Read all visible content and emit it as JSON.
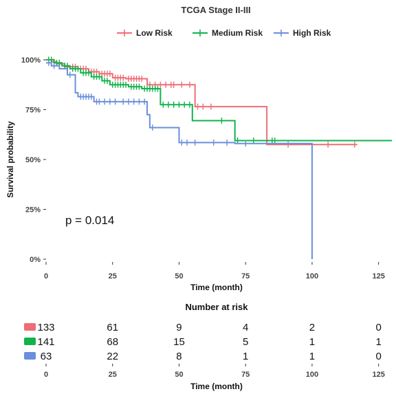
{
  "chart_data": {
    "type": "line",
    "subtype": "kaplan-meier",
    "title": "TCGA Stage II-III",
    "xlabel": "Time (month)",
    "ylabel": "Survival probability",
    "xlim": [
      0,
      130
    ],
    "ylim": [
      0,
      1
    ],
    "xticks": [
      0,
      25,
      50,
      75,
      100,
      125
    ],
    "yticks": [
      0,
      0.25,
      0.5,
      0.75,
      1.0
    ],
    "ytick_labels": [
      "0%",
      "25%",
      "50%",
      "75%",
      "100%"
    ],
    "pvalue_label": "p = 0.014",
    "grid": false,
    "legend_position": "top",
    "series": [
      {
        "name": "Low Risk",
        "color": "#ee6d76",
        "steps": [
          [
            0,
            1.0
          ],
          [
            2,
            0.99
          ],
          [
            4,
            0.98
          ],
          [
            7,
            0.965
          ],
          [
            12,
            0.955
          ],
          [
            16,
            0.94
          ],
          [
            20,
            0.93
          ],
          [
            25,
            0.91
          ],
          [
            30,
            0.905
          ],
          [
            38,
            0.875
          ],
          [
            56,
            0.765
          ],
          [
            83,
            0.575
          ]
        ],
        "end": 117,
        "censors": [
          [
            1,
            1.0
          ],
          [
            3,
            0.99
          ],
          [
            5,
            0.98
          ],
          [
            8,
            0.965
          ],
          [
            10,
            0.965
          ],
          [
            11,
            0.965
          ],
          [
            13,
            0.955
          ],
          [
            14,
            0.955
          ],
          [
            15,
            0.955
          ],
          [
            17,
            0.94
          ],
          [
            18,
            0.94
          ],
          [
            19,
            0.94
          ],
          [
            21,
            0.93
          ],
          [
            22,
            0.93
          ],
          [
            23,
            0.93
          ],
          [
            24,
            0.93
          ],
          [
            26,
            0.91
          ],
          [
            27,
            0.91
          ],
          [
            28,
            0.91
          ],
          [
            29,
            0.91
          ],
          [
            31,
            0.905
          ],
          [
            32,
            0.905
          ],
          [
            33,
            0.905
          ],
          [
            34,
            0.905
          ],
          [
            35,
            0.905
          ],
          [
            36,
            0.905
          ],
          [
            39,
            0.875
          ],
          [
            41,
            0.875
          ],
          [
            43,
            0.875
          ],
          [
            45,
            0.875
          ],
          [
            47,
            0.875
          ],
          [
            48,
            0.875
          ],
          [
            51,
            0.875
          ],
          [
            54,
            0.875
          ],
          [
            57,
            0.765
          ],
          [
            59,
            0.765
          ],
          [
            62,
            0.765
          ],
          [
            91,
            0.575
          ],
          [
            106,
            0.575
          ],
          [
            116,
            0.575
          ]
        ]
      },
      {
        "name": "Medium Risk",
        "color": "#11b34a",
        "steps": [
          [
            0,
            1.0
          ],
          [
            3,
            0.985
          ],
          [
            6,
            0.97
          ],
          [
            9,
            0.955
          ],
          [
            13,
            0.935
          ],
          [
            17,
            0.915
          ],
          [
            21,
            0.895
          ],
          [
            24,
            0.875
          ],
          [
            31,
            0.865
          ],
          [
            36,
            0.855
          ],
          [
            43,
            0.775
          ],
          [
            55,
            0.695
          ],
          [
            71,
            0.595
          ]
        ],
        "end": 130,
        "censors": [
          [
            1,
            1.0
          ],
          [
            2,
            1.0
          ],
          [
            4,
            0.985
          ],
          [
            5,
            0.985
          ],
          [
            7,
            0.97
          ],
          [
            8,
            0.97
          ],
          [
            10,
            0.955
          ],
          [
            11,
            0.955
          ],
          [
            12,
            0.955
          ],
          [
            14,
            0.935
          ],
          [
            15,
            0.935
          ],
          [
            16,
            0.935
          ],
          [
            18,
            0.915
          ],
          [
            19,
            0.915
          ],
          [
            20,
            0.915
          ],
          [
            22,
            0.895
          ],
          [
            23,
            0.895
          ],
          [
            25,
            0.875
          ],
          [
            26,
            0.875
          ],
          [
            27,
            0.875
          ],
          [
            28,
            0.875
          ],
          [
            29,
            0.875
          ],
          [
            30,
            0.875
          ],
          [
            32,
            0.865
          ],
          [
            33,
            0.865
          ],
          [
            34,
            0.865
          ],
          [
            35,
            0.865
          ],
          [
            37,
            0.855
          ],
          [
            38,
            0.855
          ],
          [
            39,
            0.855
          ],
          [
            40,
            0.855
          ],
          [
            41,
            0.855
          ],
          [
            42,
            0.855
          ],
          [
            44,
            0.775
          ],
          [
            46,
            0.775
          ],
          [
            48,
            0.775
          ],
          [
            50,
            0.775
          ],
          [
            52,
            0.775
          ],
          [
            54,
            0.775
          ],
          [
            66,
            0.695
          ],
          [
            72,
            0.595
          ],
          [
            78,
            0.595
          ],
          [
            85,
            0.595
          ],
          [
            86,
            0.595
          ]
        ]
      },
      {
        "name": "High Risk",
        "color": "#6a8fdc",
        "steps": [
          [
            0,
            0.985
          ],
          [
            2,
            0.97
          ],
          [
            5,
            0.955
          ],
          [
            8,
            0.925
          ],
          [
            11,
            0.835
          ],
          [
            12,
            0.815
          ],
          [
            18,
            0.79
          ],
          [
            38,
            0.725
          ],
          [
            39,
            0.66
          ],
          [
            50,
            0.585
          ],
          [
            71,
            0.58
          ],
          [
            100,
            0.0
          ]
        ],
        "end": 100,
        "censors": [
          [
            1,
            0.985
          ],
          [
            3,
            0.97
          ],
          [
            9,
            0.925
          ],
          [
            13,
            0.815
          ],
          [
            14,
            0.815
          ],
          [
            15,
            0.815
          ],
          [
            16,
            0.815
          ],
          [
            17,
            0.815
          ],
          [
            19,
            0.79
          ],
          [
            20,
            0.79
          ],
          [
            22,
            0.79
          ],
          [
            24,
            0.79
          ],
          [
            26,
            0.79
          ],
          [
            29,
            0.79
          ],
          [
            31,
            0.79
          ],
          [
            33,
            0.79
          ],
          [
            35,
            0.79
          ],
          [
            37,
            0.79
          ],
          [
            40,
            0.66
          ],
          [
            51,
            0.585
          ],
          [
            53,
            0.585
          ],
          [
            56,
            0.585
          ],
          [
            63,
            0.585
          ],
          [
            68,
            0.585
          ],
          [
            75,
            0.58
          ]
        ]
      }
    ],
    "risk_table": {
      "title": "Number at risk",
      "xlabel": "Time (month)",
      "times": [
        0,
        25,
        50,
        75,
        100,
        125
      ],
      "rows": [
        {
          "name": "Low Risk",
          "color": "#ee6d76",
          "counts": [
            133,
            61,
            9,
            4,
            2,
            0
          ]
        },
        {
          "name": "Medium Risk",
          "color": "#11b34a",
          "counts": [
            141,
            68,
            15,
            5,
            1,
            1
          ]
        },
        {
          "name": "High Risk",
          "color": "#6a8fdc",
          "counts": [
            63,
            22,
            8,
            1,
            1,
            0
          ]
        }
      ]
    }
  }
}
